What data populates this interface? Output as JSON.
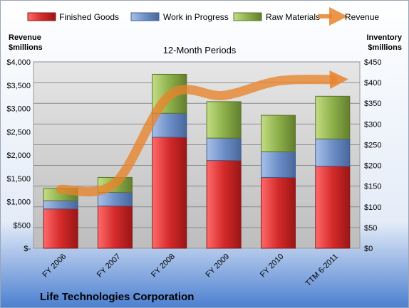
{
  "chart_data": {
    "type": "bar",
    "stacked": true,
    "subtitle": "12-Month Periods",
    "company": "Life Technologies Corporation",
    "left_axis_title": [
      "Revenue",
      "$millions"
    ],
    "right_axis_title": [
      "Inventory",
      "$millions"
    ],
    "categories": [
      "FY 2006",
      "FY 2007",
      "FY 2008",
      "FY 2009",
      "FY 2010",
      "TTM 6-2011"
    ],
    "left_ticks": [
      "$-",
      "$500",
      "$1,000",
      "$1,500",
      "$2,000",
      "$2,500",
      "$3,000",
      "$3,500",
      "$4,000"
    ],
    "right_ticks": [
      "$0",
      "$50",
      "$100",
      "$150",
      "$200",
      "$250",
      "$300",
      "$350",
      "$400",
      "$450"
    ],
    "left_ylim": [
      0,
      4000
    ],
    "right_ylim": [
      0,
      450
    ],
    "grid": true,
    "legend_position": "top",
    "series": [
      {
        "name": "Finished Goods",
        "axis": "right",
        "kind": "bar",
        "color": "#d42a2a",
        "values": [
          95,
          102,
          268,
          212,
          171,
          198
        ]
      },
      {
        "name": "Work in Progress",
        "axis": "right",
        "kind": "bar",
        "color": "#6d8fc7",
        "values": [
          20,
          33,
          58,
          54,
          62,
          66
        ]
      },
      {
        "name": "Raw Materials",
        "axis": "right",
        "kind": "bar",
        "color": "#8db04a",
        "values": [
          30,
          36,
          94,
          88,
          88,
          103
        ]
      },
      {
        "name": "Revenue",
        "axis": "left",
        "kind": "line",
        "color": "#e8832a",
        "values": [
          1263,
          1400,
          3280,
          3280,
          3590,
          3620
        ]
      }
    ]
  }
}
